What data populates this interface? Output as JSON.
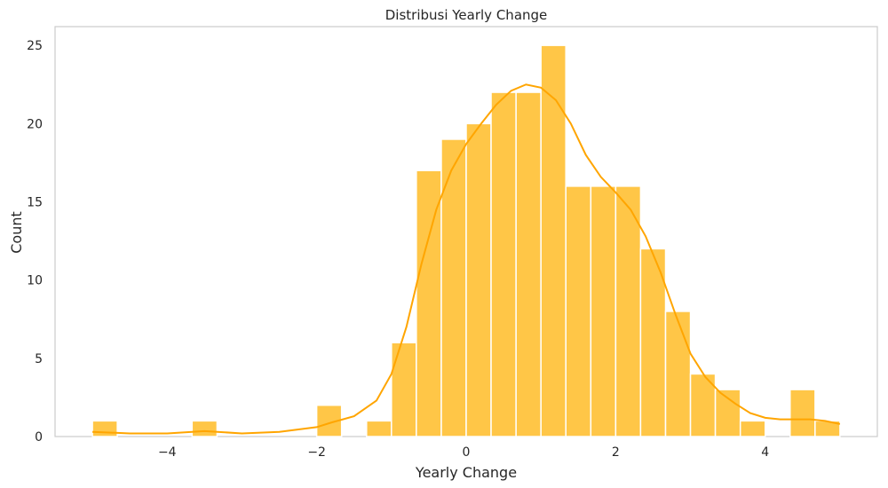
{
  "chart_data": {
    "type": "bar",
    "title": "Distribusi Yearly Change",
    "xlabel": "Yearly Change",
    "ylabel": "Count",
    "xlim": [
      -5.5,
      5.5
    ],
    "ylim": [
      0,
      26.2
    ],
    "xticks": [
      -4,
      -2,
      0,
      2,
      4
    ],
    "xtick_labels": [
      "−4",
      "−2",
      "0",
      "2",
      "4"
    ],
    "yticks": [
      0,
      5,
      10,
      15,
      20,
      25
    ],
    "grid": false,
    "bar_color": "#ffb000",
    "curve_color": "#ffa500",
    "bin_start": -5.0,
    "bin_width": 0.3333,
    "bins": [
      {
        "x0": -5.0,
        "x1": -4.667,
        "count": 1
      },
      {
        "x0": -4.667,
        "x1": -4.333,
        "count": 0
      },
      {
        "x0": -4.333,
        "x1": -4.0,
        "count": 0
      },
      {
        "x0": -4.0,
        "x1": -3.667,
        "count": 0
      },
      {
        "x0": -3.667,
        "x1": -3.333,
        "count": 1
      },
      {
        "x0": -3.333,
        "x1": -3.0,
        "count": 0
      },
      {
        "x0": -3.0,
        "x1": -2.667,
        "count": 0
      },
      {
        "x0": -2.667,
        "x1": -2.333,
        "count": 0
      },
      {
        "x0": -2.333,
        "x1": -2.0,
        "count": 0
      },
      {
        "x0": -2.0,
        "x1": -1.667,
        "count": 2
      },
      {
        "x0": -1.667,
        "x1": -1.333,
        "count": 0
      },
      {
        "x0": -1.333,
        "x1": -1.0,
        "count": 1
      },
      {
        "x0": -1.0,
        "x1": -0.667,
        "count": 6
      },
      {
        "x0": -0.667,
        "x1": -0.333,
        "count": 17
      },
      {
        "x0": -0.333,
        "x1": 0.0,
        "count": 19
      },
      {
        "x0": 0.0,
        "x1": 0.333,
        "count": 20
      },
      {
        "x0": 0.333,
        "x1": 0.667,
        "count": 22
      },
      {
        "x0": 0.667,
        "x1": 1.0,
        "count": 22
      },
      {
        "x0": 1.0,
        "x1": 1.333,
        "count": 25
      },
      {
        "x0": 1.333,
        "x1": 1.667,
        "count": 16
      },
      {
        "x0": 1.667,
        "x1": 2.0,
        "count": 16
      },
      {
        "x0": 2.0,
        "x1": 2.333,
        "count": 16
      },
      {
        "x0": 2.333,
        "x1": 2.667,
        "count": 12
      },
      {
        "x0": 2.667,
        "x1": 3.0,
        "count": 8
      },
      {
        "x0": 3.0,
        "x1": 3.333,
        "count": 4
      },
      {
        "x0": 3.333,
        "x1": 3.667,
        "count": 3
      },
      {
        "x0": 3.667,
        "x1": 4.0,
        "count": 1
      },
      {
        "x0": 4.0,
        "x1": 4.333,
        "count": 0
      },
      {
        "x0": 4.333,
        "x1": 4.667,
        "count": 3
      },
      {
        "x0": 4.667,
        "x1": 5.0,
        "count": 1
      }
    ],
    "kde_curve": {
      "x": [
        -5.0,
        -4.5,
        -4.0,
        -3.5,
        -3.0,
        -2.5,
        -2.0,
        -1.8,
        -1.5,
        -1.2,
        -1.0,
        -0.8,
        -0.6,
        -0.4,
        -0.2,
        0.0,
        0.2,
        0.4,
        0.6,
        0.8,
        1.0,
        1.2,
        1.4,
        1.6,
        1.8,
        2.0,
        2.2,
        2.4,
        2.6,
        2.8,
        3.0,
        3.2,
        3.4,
        3.6,
        3.8,
        4.0,
        4.2,
        4.4,
        4.6,
        4.8,
        5.0
      ],
      "y": [
        0.3,
        0.2,
        0.2,
        0.35,
        0.2,
        0.3,
        0.6,
        0.9,
        1.3,
        2.3,
        4.0,
        7.0,
        11.0,
        14.5,
        17.0,
        18.7,
        20.0,
        21.2,
        22.1,
        22.5,
        22.3,
        21.5,
        20.0,
        18.0,
        16.6,
        15.6,
        14.5,
        12.8,
        10.5,
        7.8,
        5.3,
        3.8,
        2.8,
        2.1,
        1.5,
        1.2,
        1.1,
        1.1,
        1.1,
        1.0,
        0.8
      ]
    }
  }
}
